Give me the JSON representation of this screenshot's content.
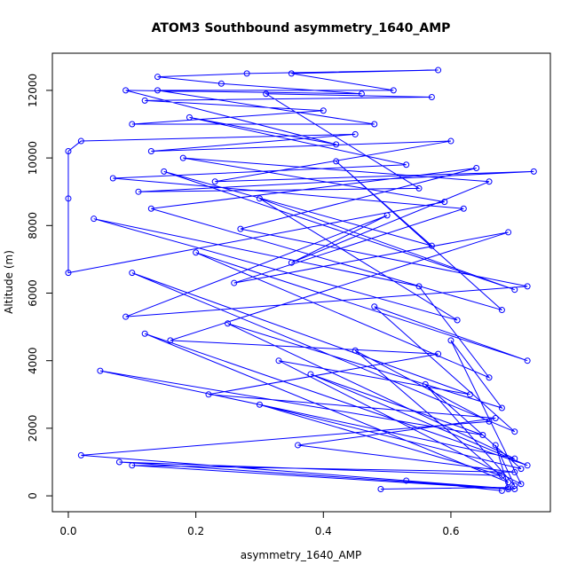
{
  "chart_data": {
    "type": "line",
    "title": "ATOM3 Southbound asymmetry_1640_AMP",
    "xlabel": "asymmetry_1640_AMP",
    "ylabel": "Altitude (m)",
    "color": "#0000ff",
    "markers": true,
    "x": [
      0.49,
      0.69,
      0.67,
      0.7,
      0.56,
      0.71,
      0.3,
      0.68,
      0.08,
      0.7,
      0.02,
      0.66,
      0.45,
      0.69,
      0.12,
      0.72,
      0.38,
      0.65,
      0.05,
      0.7,
      0.25,
      0.68,
      0.6,
      0.71,
      0.33,
      0.63,
      0.1,
      0.7,
      0.48,
      0.72,
      0.2,
      0.66,
      0.55,
      0.04,
      0.61,
      0.3,
      0.7,
      0.15,
      0.57,
      0.42,
      0.68,
      0.13,
      0.64,
      0.27,
      0.72,
      0.09,
      0.5,
      0.35,
      0.66,
      0.18,
      0.59,
      0.0,
      0.0,
      0.0,
      0.02,
      0.45,
      0.13,
      0.6,
      0.23,
      0.73,
      0.11,
      0.55,
      0.31,
      0.57,
      0.12,
      0.4,
      0.1,
      0.48,
      0.14,
      0.51,
      0.35,
      0.58,
      0.28,
      0.14,
      0.24,
      0.46,
      0.09,
      0.42,
      0.19,
      0.53,
      0.07,
      0.62,
      0.26,
      0.69,
      0.16,
      0.58,
      0.22,
      0.67,
      0.36,
      0.7,
      0.1,
      0.69,
      0.53,
      0.68
    ],
    "values": [
      200,
      250,
      1500,
      300,
      3300,
      800,
      2700,
      600,
      1000,
      200,
      1200,
      2200,
      4300,
      400,
      4800,
      900,
      3600,
      1800,
      3700,
      1100,
      5100,
      2600,
      4600,
      350,
      4000,
      3000,
      6600,
      1900,
      5600,
      4000,
      7200,
      3500,
      6200,
      8200,
      5200,
      8800,
      6100,
      9600,
      7400,
      9900,
      5500,
      8500,
      9700,
      7900,
      6200,
      5300,
      8300,
      6900,
      9300,
      10000,
      8700,
      6600,
      8800,
      10200,
      10500,
      10700,
      10200,
      10500,
      9300,
      9600,
      9000,
      9100,
      11900,
      11800,
      11700,
      11400,
      11000,
      11000,
      12000,
      12000,
      12500,
      12600,
      12500,
      12400,
      12200,
      11900,
      12000,
      10400,
      11200,
      9800,
      9400,
      8500,
      6300,
      7800,
      4600,
      4200,
      3000,
      2300,
      1500,
      700,
      900,
      200,
      450,
      150
    ],
    "xlim": [
      -0.025,
      0.756
    ],
    "ylim": [
      -470,
      13100
    ],
    "xticks": [
      {
        "value": 0,
        "label": "0.0"
      },
      0.2,
      0.4,
      0.6
    ],
    "yticks": [
      0,
      2000,
      4000,
      6000,
      8000,
      10000,
      12000
    ]
  }
}
